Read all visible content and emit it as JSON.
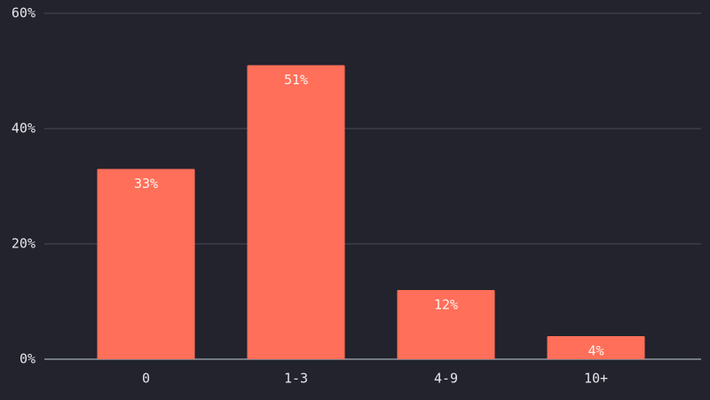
{
  "chart_data": {
    "type": "bar",
    "categories": [
      "0",
      "1-3",
      "4-9",
      "10+"
    ],
    "values": [
      33,
      51,
      12,
      4
    ],
    "value_labels": [
      "33%",
      "51%",
      "12%",
      "4%"
    ],
    "color": "#ff6f59",
    "ylim": [
      0,
      60
    ],
    "yticks": [
      {
        "value": 0,
        "label": "0%"
      },
      {
        "value": 20,
        "label": "20%"
      },
      {
        "value": 40,
        "label": "40%"
      },
      {
        "value": 60,
        "label": "60%"
      }
    ],
    "grid": true
  }
}
